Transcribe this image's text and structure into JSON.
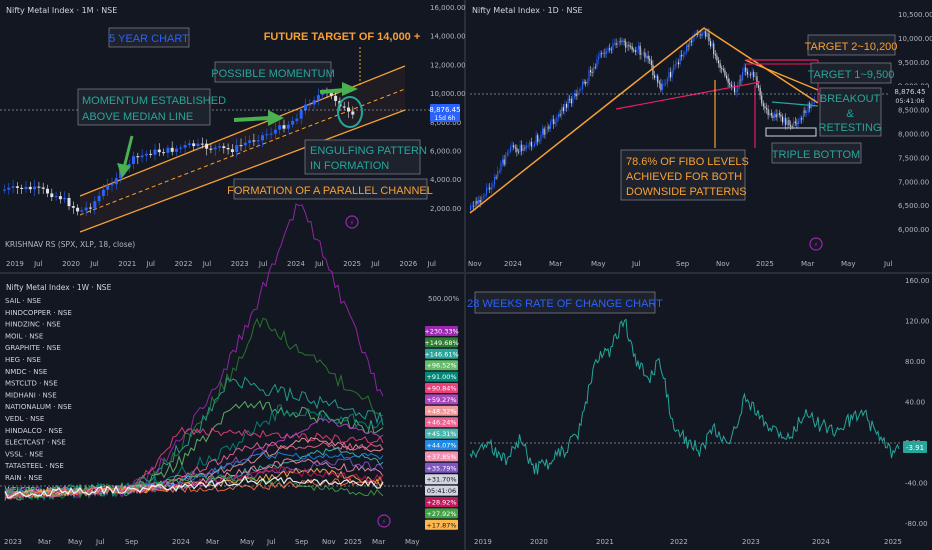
{
  "panels": {
    "tl": {
      "title": "Nifty Metal Index · 1M · NSE",
      "indicator": "KRISHNAV RS (SPX, XLP, 18, close)",
      "price_ticks": [
        "16,000.00",
        "14,000.00",
        "12,000.00",
        "10,000.00",
        "8,000.00",
        "6,000.00",
        "4,000.00",
        "2,000.00"
      ],
      "price_badge": "8,876.45",
      "price_badge_sub": "15d 6h",
      "time_ticks": [
        "2019",
        "Jul",
        "2020",
        "Jul",
        "2021",
        "Jul",
        "2022",
        "Jul",
        "2023",
        "Jul",
        "2024",
        "Jul",
        "2025",
        "Jul",
        "2026",
        "Jul"
      ],
      "annotations": {
        "five_year": "5 YEAR CHART",
        "future_target": "FUTURE TARGET OF 14,000 +",
        "possible_momentum": "POSSIBLE MOMENTUM",
        "momentum_line1": "MOMENTUM ESTABLISHED",
        "momentum_line2": "ABOVE MEDIAN LINE",
        "engulfing_line1": "ENGULFING PATTERN",
        "engulfing_line2": "IN FORMATION",
        "parallel": "FORMATION OF A PARALLEL CHANNEL"
      },
      "colors": {
        "up": "#2962ff",
        "down": "#e0e3eb",
        "channel": "#f7a035",
        "annot_text": "#26a69a",
        "box_border": "#787b86"
      }
    },
    "tr": {
      "title": "Nifty Metal Index · 1D · NSE",
      "price_ticks": [
        "10,500.00",
        "10,000.00",
        "9,500.00",
        "9,000.00",
        "8,500.00",
        "8,000.00",
        "7,500.00",
        "7,000.00",
        "6,500.00",
        "6,000.00"
      ],
      "price_badge": "8,876.45",
      "price_badge_sub": "05:41:06",
      "time_ticks": [
        "Nov",
        "2024",
        "Mar",
        "May",
        "Jul",
        "Sep",
        "Nov",
        "2025",
        "Mar",
        "May",
        "Jul"
      ],
      "annotations": {
        "target2": "TARGET 2~10,200",
        "target1": "TARGET 1~9,500",
        "breakout_line1": "BREAKOUT",
        "breakout_line2": "&",
        "breakout_line3": "RETESTING",
        "fibo_line1": "78.6% OF FIBO LEVELS",
        "fibo_line2": "ACHIEVED FOR BOTH",
        "fibo_line3": "DOWNSIDE PATTERNS",
        "triple_bottom": "TRIPLE BOTTOM"
      }
    },
    "bl": {
      "title": "Nifty Metal Index · 1W · NSE",
      "symbols": [
        "SAIL · NSE",
        "HINDCOPPER · NSE",
        "HINDZINC · NSE",
        "MOIL · NSE",
        "GRAPHITE · NSE",
        "HEG · NSE",
        "NMDC · NSE",
        "MSTCLTD · NSE",
        "MIDHANI · NSE",
        "NATIONALUM · NSE",
        "VEDL · NSE",
        "HINDALCO · NSE",
        "ELECTCAST · NSE",
        "VSSL · NSE",
        "TATASTEEL · NSE",
        "RAIN · NSE",
        "WELCORP · NSE"
      ],
      "percent_top": "500.00%",
      "badges": [
        {
          "v": "+230.33%",
          "c": "#9c27b0"
        },
        {
          "v": "+149.68%",
          "c": "#2e7d32"
        },
        {
          "v": "+146.61%",
          "c": "#26a69a"
        },
        {
          "v": "+96.52%",
          "c": "#66bb6a"
        },
        {
          "v": "+91.00%",
          "c": "#00897b"
        },
        {
          "v": "+90.84%",
          "c": "#ec407a"
        },
        {
          "v": "+59.27%",
          "c": "#ab47bc"
        },
        {
          "v": "+48.32%",
          "c": "#ef9a9a"
        },
        {
          "v": "+46.24%",
          "c": "#f06292"
        },
        {
          "v": "+45.31%",
          "c": "#4db6ac"
        },
        {
          "v": "+44.07%",
          "c": "#1e88e5"
        },
        {
          "v": "+37.85%",
          "c": "#f48fb1"
        },
        {
          "v": "+35.79%",
          "c": "#7e57c2"
        },
        {
          "v": "+31.70%",
          "c": "#d1d4dc"
        },
        {
          "v": "05:41:06",
          "c": "#d1d4dc"
        },
        {
          "v": "+28.92%",
          "c": "#c2185b"
        },
        {
          "v": "+27.92%",
          "c": "#43a047"
        },
        {
          "v": "+17.87%",
          "c": "#ffb74d"
        }
      ],
      "time_ticks": [
        "2023",
        "Mar",
        "May",
        "Jul",
        "Sep",
        "2024",
        "Mar",
        "May",
        "Jul",
        "Sep",
        "Nov",
        "2025",
        "Mar",
        "May"
      ]
    },
    "br": {
      "title": "28 WEEKS RATE OF CHANGE CHART",
      "price_ticks": [
        "160.00",
        "120.00",
        "80.00",
        "40.00",
        "0.00",
        "-40.00",
        "-80.00"
      ],
      "badge": "-3.91",
      "time_ticks": [
        "2019",
        "2020",
        "2021",
        "2022",
        "2023",
        "2024",
        "2025"
      ]
    }
  },
  "chart_data": [
    {
      "type": "candlestick",
      "title": "Nifty Metal Index · 1M · NSE",
      "x": [
        "2019",
        "2020",
        "2021",
        "2022",
        "2023",
        "2024",
        "2025"
      ],
      "close": [
        3000,
        2000,
        4200,
        5800,
        6500,
        8500,
        8876
      ],
      "ylim": [
        0,
        16000
      ],
      "last": 8876.45
    },
    {
      "type": "line",
      "title": "Nifty Metal Index · 1D · NSE",
      "x": [
        "2023-11",
        "2024-01",
        "2024-05",
        "2024-07",
        "2024-09",
        "2024-11",
        "2025-01",
        "2025-03"
      ],
      "y": [
        6500,
        7900,
        9300,
        9400,
        10200,
        8700,
        8200,
        8876
      ],
      "ylim": [
        6000,
        10500
      ],
      "last": 8876.45
    },
    {
      "type": "line",
      "title": "Nifty Metal Index · 1W · NSE",
      "ylim": [
        -100,
        500
      ],
      "series": [
        {
          "name": "SAIL · NSE",
          "values": [
            0,
            60,
            140,
            230
          ]
        },
        {
          "name": "HINDCOPPER · NSE",
          "values": [
            0,
            80,
            150,
            149.68
          ]
        },
        {
          "name": "HINDZINC · NSE",
          "values": [
            0,
            30,
            90,
            146.61
          ]
        }
      ]
    },
    {
      "type": "line",
      "title": "28 WEEKS RATE OF CHANGE CHART",
      "x": [
        "2019",
        "2020",
        "2021",
        "2022",
        "2023",
        "2024",
        "2025"
      ],
      "y": [
        -10,
        -25,
        90,
        40,
        -10,
        30,
        -3.91
      ],
      "ylim": [
        -80,
        160
      ],
      "last": -3.91
    }
  ]
}
